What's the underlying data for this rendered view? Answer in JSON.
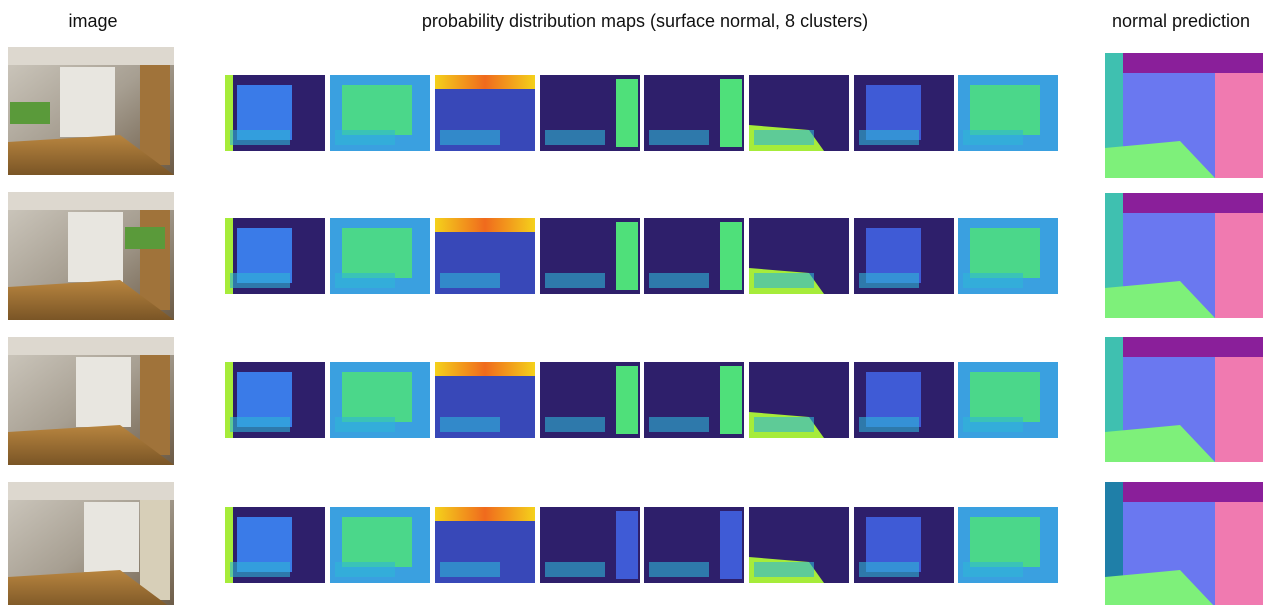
{
  "header": {
    "image": "image",
    "maps": "probability distribution maps (surface normal, 8 clusters)",
    "prediction": "normal prediction"
  }
}
